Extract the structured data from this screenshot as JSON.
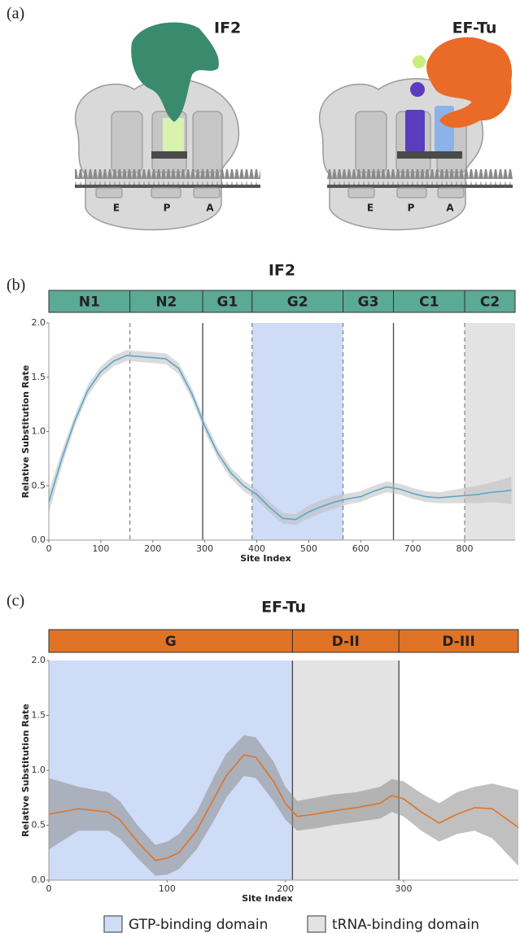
{
  "panel_a": {
    "label": "(a)",
    "left": {
      "title": "IF2",
      "sites": [
        "E",
        "P",
        "A"
      ]
    },
    "right": {
      "title": "EF-Tu",
      "sites": [
        "E",
        "P",
        "A"
      ]
    }
  },
  "chart_data": [
    {
      "type": "line",
      "panel_label": "(b)",
      "title": "IF2",
      "x_label": "Site Index",
      "y_label": "Relative Substitution Rate",
      "xlim": [
        0,
        897
      ],
      "xticks": [
        0,
        100,
        200,
        300,
        400,
        500,
        600,
        700,
        800
      ],
      "ylim": [
        0,
        2
      ],
      "yticks": [
        {
          "value": 0,
          "label": "0.0"
        },
        0.5,
        {
          "value": 1,
          "label": "1.0"
        },
        1.5,
        {
          "value": 2,
          "label": "2.0"
        }
      ],
      "domain_color": "#5aaa96",
      "domains": [
        {
          "name": "N1",
          "start": 0,
          "end": 156
        },
        {
          "name": "N2",
          "start": 156,
          "end": 296
        },
        {
          "name": "G1",
          "start": 296,
          "end": 391
        },
        {
          "name": "G2",
          "start": 391,
          "end": 566
        },
        {
          "name": "G3",
          "start": 566,
          "end": 663
        },
        {
          "name": "C1",
          "start": 663,
          "end": 800
        },
        {
          "name": "C2",
          "start": 800,
          "end": 897
        }
      ],
      "boundaries": [
        {
          "x": 156,
          "style": "dashed"
        },
        {
          "x": 296,
          "style": "solid"
        },
        {
          "x": 391,
          "style": "dashed"
        },
        {
          "x": 566,
          "style": "dashed"
        },
        {
          "x": 663,
          "style": "solid"
        },
        {
          "x": 800,
          "style": "dashed"
        }
      ],
      "regions": [
        {
          "start": 391,
          "end": 566,
          "color": "#cfdcf7"
        },
        {
          "start": 800,
          "end": 897,
          "color": "#e3e3e3"
        }
      ],
      "band_color": "#bdbdbd",
      "x": [
        0,
        25,
        50,
        75,
        100,
        125,
        150,
        175,
        200,
        225,
        250,
        275,
        300,
        325,
        350,
        375,
        400,
        425,
        450,
        475,
        500,
        525,
        550,
        575,
        600,
        625,
        650,
        675,
        700,
        725,
        750,
        775,
        800,
        825,
        850,
        875,
        890
      ],
      "series": [
        {
          "color": "#5aa8c8",
          "values": [
            0.35,
            0.75,
            1.1,
            1.38,
            1.55,
            1.65,
            1.7,
            1.69,
            1.68,
            1.67,
            1.58,
            1.35,
            1.05,
            0.8,
            0.62,
            0.5,
            0.42,
            0.3,
            0.2,
            0.19,
            0.26,
            0.31,
            0.35,
            0.38,
            0.4,
            0.45,
            0.49,
            0.47,
            0.43,
            0.4,
            0.39,
            0.4,
            0.41,
            0.42,
            0.44,
            0.45,
            0.46
          ],
          "lower": [
            0.25,
            0.68,
            1.05,
            1.33,
            1.5,
            1.6,
            1.65,
            1.64,
            1.63,
            1.62,
            1.53,
            1.3,
            1.0,
            0.75,
            0.57,
            0.45,
            0.37,
            0.25,
            0.15,
            0.14,
            0.2,
            0.25,
            0.29,
            0.33,
            0.35,
            0.4,
            0.44,
            0.42,
            0.38,
            0.35,
            0.34,
            0.34,
            0.34,
            0.34,
            0.35,
            0.34,
            0.33
          ],
          "upper": [
            0.45,
            0.82,
            1.15,
            1.43,
            1.6,
            1.7,
            1.75,
            1.74,
            1.73,
            1.72,
            1.63,
            1.4,
            1.1,
            0.85,
            0.67,
            0.55,
            0.47,
            0.35,
            0.25,
            0.24,
            0.32,
            0.37,
            0.41,
            0.43,
            0.45,
            0.5,
            0.54,
            0.52,
            0.48,
            0.45,
            0.44,
            0.46,
            0.48,
            0.5,
            0.53,
            0.56,
            0.59
          ]
        }
      ]
    },
    {
      "type": "line",
      "panel_label": "(c)",
      "title": "EF-Tu",
      "x_label": "Site Index",
      "y_label": "Relative Substitution Rate",
      "xlim": [
        0,
        397
      ],
      "xticks": [
        0,
        100,
        200,
        300
      ],
      "ylim": [
        0,
        2
      ],
      "yticks": [
        {
          "value": 0,
          "label": "0.0"
        },
        0.5,
        {
          "value": 1,
          "label": "1.0"
        },
        1.5,
        {
          "value": 2,
          "label": "2.0"
        }
      ],
      "domain_color": "#e07325",
      "domains": [
        {
          "name": "G",
          "start": 0,
          "end": 206
        },
        {
          "name": "D-II",
          "start": 206,
          "end": 296
        },
        {
          "name": "D-III",
          "start": 296,
          "end": 397
        }
      ],
      "boundaries": [
        {
          "x": 206,
          "style": "solid"
        },
        {
          "x": 296,
          "style": "solid"
        }
      ],
      "regions": [
        {
          "start": 0,
          "end": 206,
          "color": "#cfdcf7"
        },
        {
          "start": 206,
          "end": 296,
          "color": "#e3e3e3"
        }
      ],
      "band_color": "#8c8c8c",
      "x": [
        0,
        25,
        50,
        60,
        75,
        90,
        100,
        110,
        125,
        140,
        150,
        165,
        175,
        190,
        200,
        210,
        225,
        240,
        260,
        280,
        290,
        300,
        315,
        330,
        345,
        360,
        375,
        397
      ],
      "series": [
        {
          "color": "#e07325",
          "values": [
            0.6,
            0.65,
            0.62,
            0.55,
            0.35,
            0.18,
            0.2,
            0.25,
            0.45,
            0.75,
            0.95,
            1.14,
            1.12,
            0.9,
            0.7,
            0.58,
            0.6,
            0.63,
            0.66,
            0.7,
            0.77,
            0.74,
            0.62,
            0.52,
            0.6,
            0.66,
            0.65,
            0.48
          ],
          "lower": [
            0.28,
            0.45,
            0.45,
            0.38,
            0.2,
            0.04,
            0.05,
            0.1,
            0.28,
            0.55,
            0.75,
            0.95,
            0.93,
            0.72,
            0.55,
            0.45,
            0.47,
            0.5,
            0.53,
            0.56,
            0.62,
            0.58,
            0.45,
            0.35,
            0.42,
            0.45,
            0.38,
            0.13
          ],
          "upper": [
            0.93,
            0.85,
            0.8,
            0.72,
            0.5,
            0.32,
            0.35,
            0.42,
            0.62,
            0.95,
            1.15,
            1.32,
            1.3,
            1.08,
            0.85,
            0.72,
            0.75,
            0.78,
            0.8,
            0.85,
            0.92,
            0.9,
            0.79,
            0.7,
            0.8,
            0.85,
            0.88,
            0.82
          ]
        }
      ]
    }
  ],
  "legend": [
    {
      "label": "GTP-binding domain",
      "color": "#cfdcf7"
    },
    {
      "label": "tRNA-binding domain",
      "color": "#e3e3e3"
    }
  ]
}
